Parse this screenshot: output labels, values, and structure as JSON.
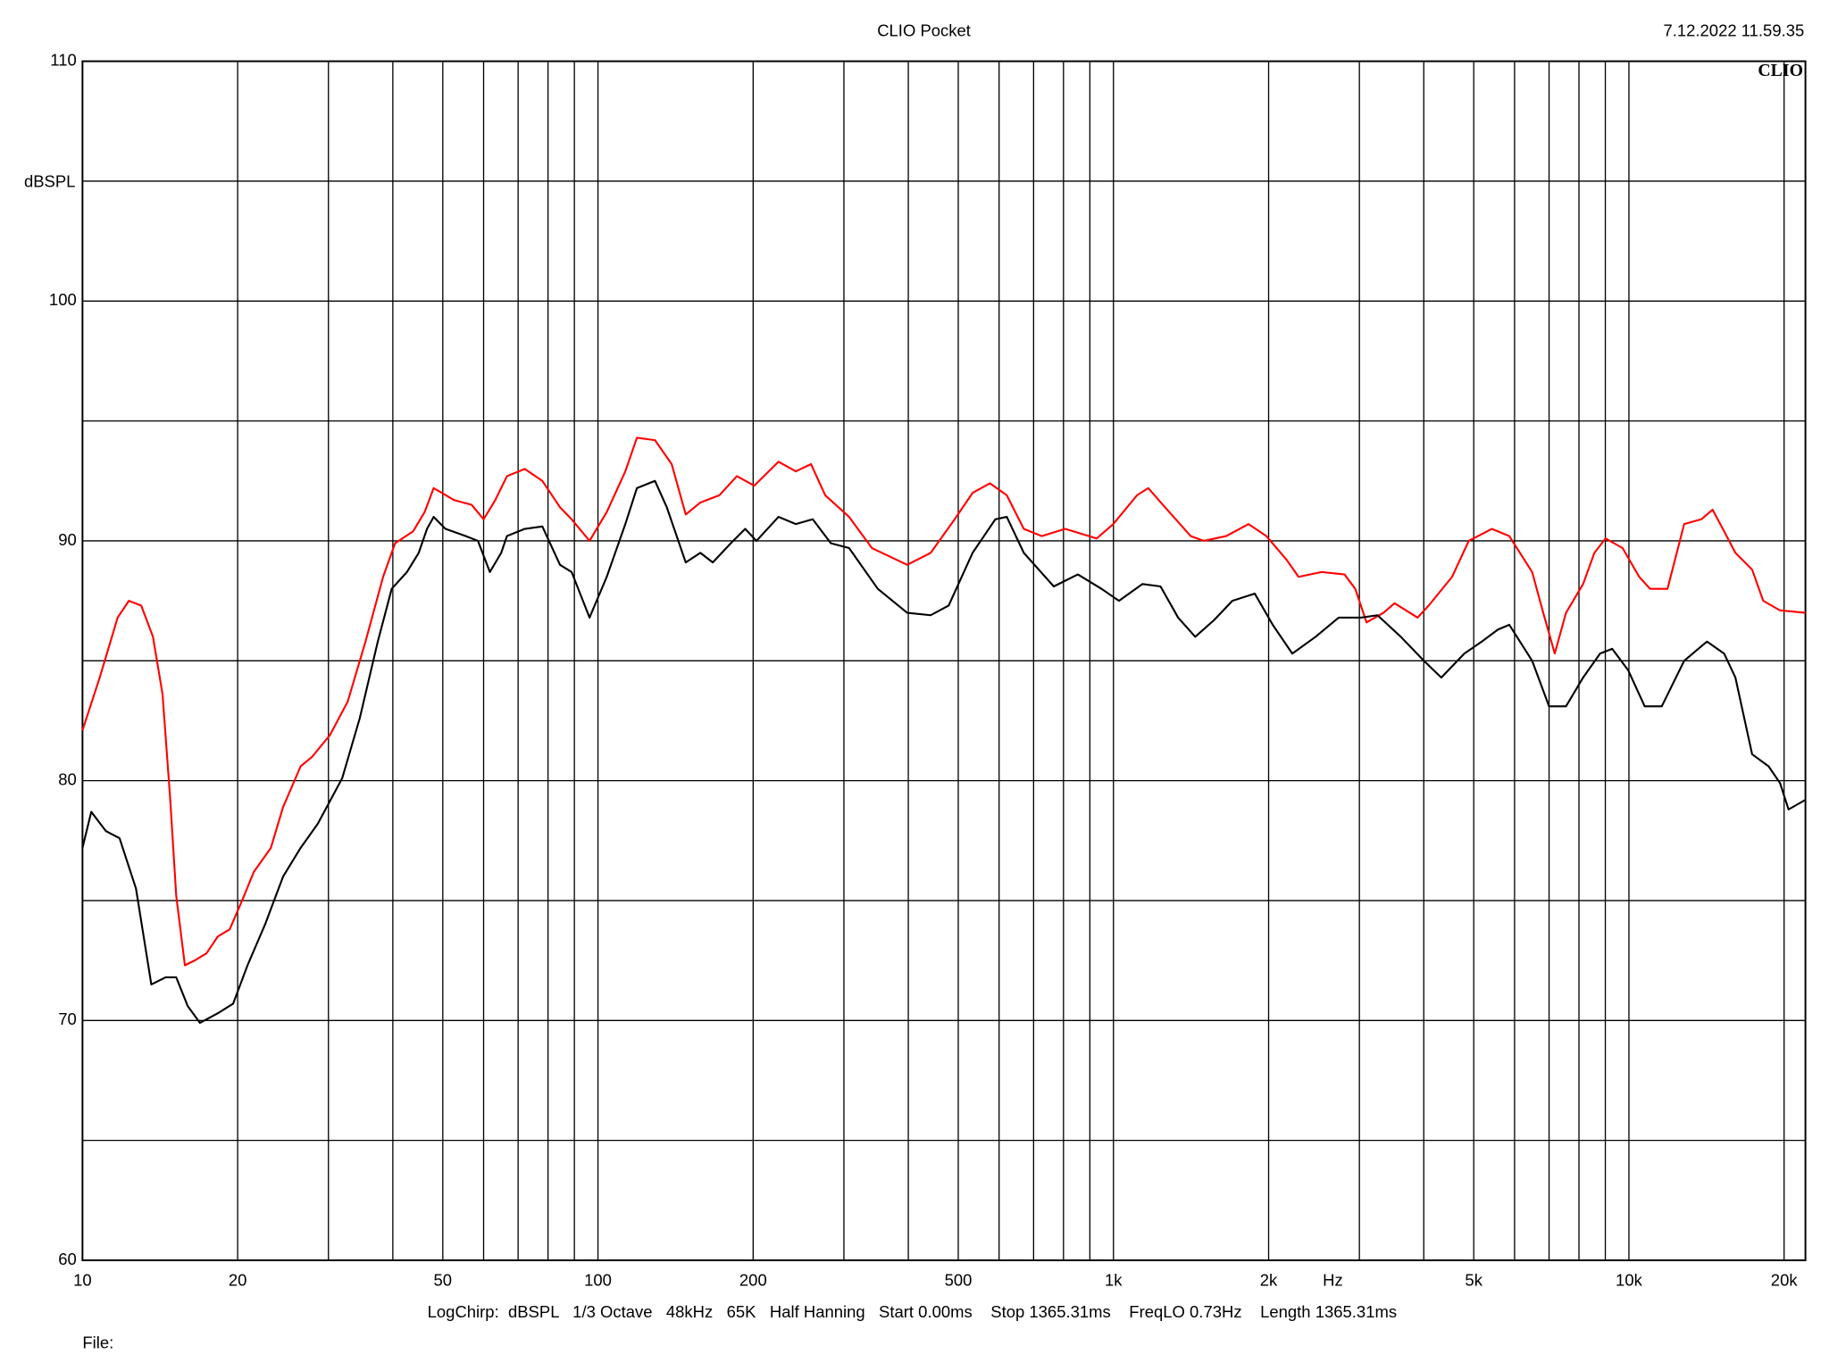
{
  "chart_data": {
    "type": "line",
    "title": "CLIO Pocket",
    "timestamp": "7.12.2022 11.59.35",
    "logo": "CLIO",
    "ylabel": "dBSPL",
    "xlabel": "Hz",
    "footer": "LogChirp:  dBSPL   1/3 Octave   48kHz   65K   Half Hanning   Start 0.00ms    Stop 1365.31ms    FreqLO 0.73Hz    Length 1365.31ms",
    "file_label": "File:",
    "log_x": true,
    "grid": true,
    "xlim": [
      10,
      22000
    ],
    "xticks": [
      10,
      20,
      50,
      100,
      200,
      500,
      {
        "value": 1000,
        "label": "1k"
      },
      {
        "value": 2000,
        "label": "2k"
      },
      {
        "value": 5000,
        "label": "5k"
      },
      {
        "value": 10000,
        "label": "10k"
      },
      {
        "value": 20000,
        "label": "20k"
      }
    ],
    "xminor": [
      30,
      40,
      60,
      70,
      80,
      90,
      300,
      400,
      600,
      700,
      800,
      900,
      3000,
      4000,
      6000,
      7000,
      8000,
      9000
    ],
    "ylim": [
      60,
      110
    ],
    "yticks": [
      60,
      70,
      80,
      90,
      100,
      110
    ],
    "yminor": [
      65,
      75,
      85,
      95,
      105
    ],
    "series": [
      {
        "color": "#ff0000",
        "x": [
          10,
          10.8,
          11.7,
          12.3,
          13.0,
          13.7,
          14.3,
          14.8,
          15.2,
          15.8,
          16.5,
          17.4,
          18.3,
          19.3,
          20.4,
          21.5,
          23.2,
          24.5,
          26.5,
          27.9,
          30.2,
          32.7,
          35.4,
          38.3,
          40.4,
          43.8,
          46.1,
          48.0,
          49.8,
          52.6,
          56.9,
          60.0,
          63.2,
          66.6,
          72.1,
          78.0,
          84.4,
          88.9,
          96.3,
          104,
          113,
          119,
          129,
          139,
          148,
          158,
          172,
          186,
          201,
          224,
          242,
          259,
          276,
          307,
          340,
          398,
          442,
          492,
          533,
          576,
          621,
          670,
          726,
          806,
          928,
          999,
          1111,
          1168,
          1259,
          1412,
          1498,
          1655,
          1828,
          1980,
          2169,
          2286,
          2534,
          2807,
          2945,
          3097,
          3341,
          3510,
          3890,
          4088,
          4539,
          4890,
          5420,
          5860,
          6490,
          6820,
          7180,
          7550,
          8150,
          8570,
          9010,
          9720,
          10470,
          10990,
          11880,
          12800,
          13820,
          14530,
          15300,
          16090,
          17340,
          18220,
          19640,
          22000
        ],
        "values": [
          82.1,
          84.3,
          86.8,
          87.5,
          87.3,
          86.0,
          83.6,
          79.2,
          75.2,
          72.3,
          72.5,
          72.8,
          73.5,
          73.8,
          75.0,
          76.2,
          77.2,
          78.9,
          80.6,
          81.0,
          81.9,
          83.3,
          85.8,
          88.5,
          89.9,
          90.4,
          91.2,
          92.2,
          92.0,
          91.7,
          91.5,
          90.9,
          91.7,
          92.7,
          93.0,
          92.5,
          91.4,
          90.9,
          90.0,
          91.2,
          92.9,
          94.3,
          94.2,
          93.2,
          91.1,
          91.6,
          91.9,
          92.7,
          92.3,
          93.3,
          92.9,
          93.2,
          91.9,
          91.0,
          89.7,
          89.0,
          89.5,
          90.9,
          92.0,
          92.4,
          91.9,
          90.5,
          90.2,
          90.5,
          90.1,
          90.7,
          91.9,
          92.2,
          91.4,
          90.2,
          90.0,
          90.2,
          90.7,
          90.2,
          89.2,
          88.5,
          88.7,
          88.6,
          88.0,
          86.6,
          87.0,
          87.4,
          86.8,
          87.3,
          88.5,
          90.0,
          90.5,
          90.2,
          88.7,
          87.0,
          85.3,
          87.0,
          88.2,
          89.5,
          90.1,
          89.7,
          88.5,
          88.0,
          88.0,
          90.7,
          90.9,
          91.3,
          90.4,
          89.5,
          88.8,
          87.5,
          87.1,
          87.0
        ]
      },
      {
        "color": "#000000",
        "x": [
          10,
          10.4,
          11.1,
          11.8,
          12.7,
          13.6,
          14.5,
          15.2,
          16.0,
          16.9,
          18.3,
          19.6,
          20.9,
          22.6,
          24.5,
          26.5,
          28.6,
          31.9,
          34.5,
          37.4,
          39.8,
          42.6,
          44.9,
          46.6,
          48.0,
          50.6,
          55.4,
          58.5,
          61.7,
          64.9,
          66.6,
          72.1,
          78.0,
          84.4,
          88.9,
          96.3,
          104,
          113,
          119,
          129,
          136,
          148,
          158,
          167,
          181,
          193,
          203,
          224,
          242,
          261,
          283,
          307,
          349,
          398,
          442,
          479,
          533,
          590,
          621,
          670,
          766,
          853,
          948,
          1025,
          1138,
          1234,
          1335,
          1441,
          1568,
          1701,
          1880,
          2037,
          2223,
          2467,
          2735,
          3020,
          3253,
          3610,
          4001,
          4325,
          4794,
          5183,
          5569,
          5860,
          6490,
          7000,
          7550,
          8150,
          8790,
          9280,
          9970,
          10730,
          11580,
          12800,
          14170,
          15300,
          16090,
          17340,
          18660,
          19640,
          20400,
          22000
        ],
        "values": [
          77.2,
          78.7,
          77.9,
          77.6,
          75.5,
          71.5,
          71.8,
          71.8,
          70.6,
          69.9,
          70.3,
          70.7,
          72.3,
          74.0,
          76.0,
          77.2,
          78.2,
          80.1,
          82.6,
          85.8,
          88.0,
          88.7,
          89.5,
          90.5,
          91.0,
          90.5,
          90.2,
          90.0,
          88.7,
          89.5,
          90.2,
          90.5,
          90.6,
          89.0,
          88.7,
          86.8,
          88.5,
          90.7,
          92.2,
          92.5,
          91.4,
          89.1,
          89.5,
          89.1,
          89.9,
          90.5,
          90.0,
          91.0,
          90.7,
          90.9,
          89.9,
          89.7,
          88.0,
          87.0,
          86.9,
          87.3,
          89.5,
          90.9,
          91.0,
          89.5,
          88.1,
          88.6,
          88.0,
          87.5,
          88.2,
          88.1,
          86.8,
          86.0,
          86.7,
          87.5,
          87.8,
          86.5,
          85.3,
          86.0,
          86.8,
          86.8,
          86.9,
          86.0,
          85.0,
          84.3,
          85.3,
          85.8,
          86.3,
          86.5,
          85.0,
          83.1,
          83.1,
          84.3,
          85.3,
          85.5,
          84.6,
          83.1,
          83.1,
          85.0,
          85.8,
          85.3,
          84.3,
          81.1,
          80.6,
          79.9,
          78.8,
          79.2
        ]
      }
    ]
  }
}
